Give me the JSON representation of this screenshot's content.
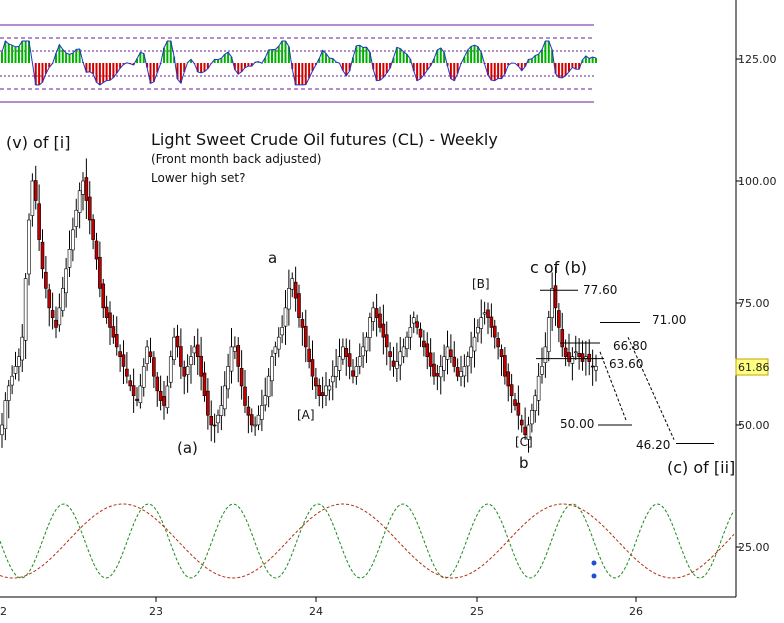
{
  "chart_data": {
    "type": "candlestick",
    "title": "Light Sweet Crude Oil futures (CL) - Weekly",
    "subtitle": "(Front month back adjusted)",
    "note": "Lower high set?",
    "x_tick_labels": [
      "2",
      "23",
      "24",
      "25",
      "26"
    ],
    "y_tick_labels": [
      "125.00",
      "100.00",
      "75.00",
      "50.00",
      "25.00"
    ],
    "last_price": "61.86",
    "colors": {
      "candle_up": "#ffffff",
      "candle_down": "#c00000",
      "candle_outline": "#000000",
      "last_price_bg": "#ffff80",
      "osc_up": "#00b000",
      "osc_down": "#d00000",
      "osc_line": "#2233cc",
      "band": "#6a1b9a",
      "cycle_green": "#1a8a1a",
      "cycle_red": "#b03010",
      "projection": "#000000"
    },
    "wave_labels": {
      "v_of_i": "(v) of [i]",
      "a_paren": "(a)",
      "a": "a",
      "A_bracket": "[A]",
      "B_bracket": "[B]",
      "C_bracket": "[C]",
      "b": "b",
      "c_of_b": "c of (b)",
      "c_of_ii": "(c) of [ii]"
    },
    "price_levels": [
      {
        "label": "77.60",
        "value": 77.6
      },
      {
        "label": "71.00",
        "value": 71.0
      },
      {
        "label": "66.80",
        "value": 66.8
      },
      {
        "label": "63.60",
        "value": 63.6
      },
      {
        "label": "50.00",
        "value": 50.0
      },
      {
        "label": "46.20",
        "value": 46.2
      }
    ],
    "price_series_close": [
      50,
      55,
      58,
      60,
      62,
      64,
      68,
      80,
      92,
      100,
      96,
      88,
      82,
      78,
      74,
      72,
      70,
      74,
      78,
      82,
      86,
      90,
      94,
      98,
      100,
      96,
      92,
      88,
      84,
      78,
      74,
      72,
      70,
      68,
      66,
      64,
      62,
      60,
      58,
      56,
      55,
      58,
      62,
      66,
      64,
      60,
      57,
      55,
      54,
      58,
      64,
      68,
      66,
      62,
      60,
      62,
      64,
      66,
      64,
      60,
      56,
      52,
      50,
      50,
      52,
      54,
      58,
      62,
      66,
      66,
      62,
      58,
      54,
      52,
      50,
      50,
      52,
      54,
      56,
      60,
      64,
      66,
      68,
      70,
      74,
      78,
      80,
      76,
      72,
      70,
      66,
      63,
      60,
      58,
      56,
      56,
      58,
      58,
      60,
      62,
      64,
      66,
      64,
      62,
      60,
      62,
      64,
      66,
      68,
      72,
      74,
      72,
      70,
      68,
      66,
      64,
      62,
      63,
      65,
      66,
      68,
      70,
      72,
      70,
      68,
      66,
      64,
      62,
      60,
      60,
      62,
      64,
      66,
      64,
      62,
      60,
      61,
      62,
      64,
      66,
      68,
      70,
      72,
      73,
      72,
      70,
      68,
      66,
      64,
      60,
      58,
      56,
      54,
      52,
      50,
      48,
      50,
      53,
      56,
      60,
      62,
      66,
      72,
      78,
      74,
      70,
      66,
      64,
      63,
      64,
      65,
      64,
      63,
      64,
      63,
      62,
      62
    ]
  }
}
